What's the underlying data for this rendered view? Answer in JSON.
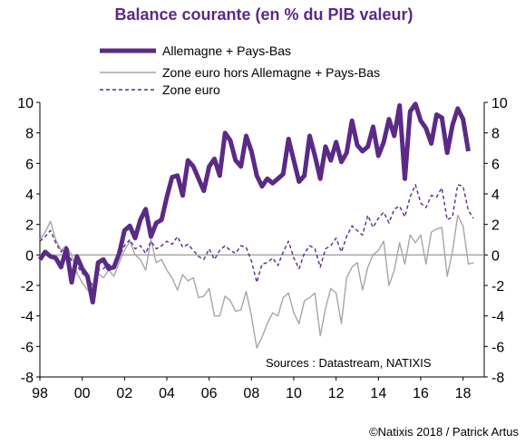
{
  "colors": {
    "primary": "#5b2a86",
    "grey": "#a6a6a6",
    "zero": "#a6a6a6"
  },
  "chart_data": {
    "type": "line",
    "title": "Balance courante (en % du PIB valeur)",
    "ylim": [
      -8,
      10
    ],
    "yticks": [
      "10",
      "8",
      "6",
      "4",
      "2",
      "0",
      "-2",
      "-4",
      "-6",
      "-8"
    ],
    "xlim": [
      1998,
      2019
    ],
    "xticks": [
      "98",
      "00",
      "02",
      "04",
      "06",
      "08",
      "10",
      "12",
      "14",
      "16",
      "18"
    ],
    "source": "Sources  : Datastream,  NATIXIS",
    "credit": "©Natixis 2018 / Patrick Artus",
    "grid": false,
    "legend": "top-left",
    "series": [
      {
        "name": "Allemagne + Pays-Bas",
        "color": "#5b2a86",
        "style": "solid-thick",
        "points": [
          [
            1998.0,
            -0.3
          ],
          [
            1998.25,
            0.2
          ],
          [
            1998.5,
            -0.1
          ],
          [
            1998.75,
            -0.2
          ],
          [
            1999.0,
            -0.8
          ],
          [
            1999.25,
            0.4
          ],
          [
            1999.5,
            -1.8
          ],
          [
            1999.75,
            -0.1
          ],
          [
            2000.0,
            -0.9
          ],
          [
            2000.25,
            -1.4
          ],
          [
            2000.5,
            -3.1
          ],
          [
            2000.75,
            -0.5
          ],
          [
            2001.0,
            -0.3
          ],
          [
            2001.25,
            -0.9
          ],
          [
            2001.5,
            -0.8
          ],
          [
            2001.75,
            0.1
          ],
          [
            2002.0,
            1.6
          ],
          [
            2002.25,
            1.9
          ],
          [
            2002.5,
            1.1
          ],
          [
            2002.75,
            2.3
          ],
          [
            2003.0,
            3.0
          ],
          [
            2003.25,
            1.2
          ],
          [
            2003.5,
            2.1
          ],
          [
            2003.75,
            2.3
          ],
          [
            2004.0,
            3.8
          ],
          [
            2004.25,
            5.1
          ],
          [
            2004.5,
            5.2
          ],
          [
            2004.75,
            3.9
          ],
          [
            2005.0,
            6.2
          ],
          [
            2005.25,
            5.8
          ],
          [
            2005.5,
            5.0
          ],
          [
            2005.75,
            4.2
          ],
          [
            2006.0,
            5.8
          ],
          [
            2006.25,
            6.3
          ],
          [
            2006.5,
            5.2
          ],
          [
            2006.75,
            8.0
          ],
          [
            2007.0,
            7.5
          ],
          [
            2007.25,
            6.2
          ],
          [
            2007.5,
            5.8
          ],
          [
            2007.75,
            7.8
          ],
          [
            2008.0,
            6.8
          ],
          [
            2008.25,
            5.2
          ],
          [
            2008.5,
            4.5
          ],
          [
            2008.75,
            5.0
          ],
          [
            2009.0,
            4.7
          ],
          [
            2009.25,
            5.0
          ],
          [
            2009.5,
            5.3
          ],
          [
            2009.75,
            7.6
          ],
          [
            2010.0,
            6.2
          ],
          [
            2010.25,
            4.8
          ],
          [
            2010.5,
            5.2
          ],
          [
            2010.75,
            7.8
          ],
          [
            2011.0,
            6.5
          ],
          [
            2011.25,
            5.0
          ],
          [
            2011.5,
            7.1
          ],
          [
            2011.75,
            6.2
          ],
          [
            2012.0,
            7.4
          ],
          [
            2012.25,
            6.1
          ],
          [
            2012.5,
            6.7
          ],
          [
            2012.75,
            8.8
          ],
          [
            2013.0,
            7.2
          ],
          [
            2013.25,
            6.8
          ],
          [
            2013.5,
            7.1
          ],
          [
            2013.75,
            8.4
          ],
          [
            2014.0,
            6.5
          ],
          [
            2014.25,
            7.4
          ],
          [
            2014.5,
            8.9
          ],
          [
            2014.75,
            7.8
          ],
          [
            2015.0,
            9.8
          ],
          [
            2015.25,
            5.0
          ],
          [
            2015.5,
            9.4
          ],
          [
            2015.75,
            9.9
          ],
          [
            2016.0,
            8.8
          ],
          [
            2016.25,
            8.3
          ],
          [
            2016.5,
            7.3
          ],
          [
            2016.75,
            9.2
          ],
          [
            2017.0,
            9.0
          ],
          [
            2017.25,
            6.7
          ],
          [
            2017.5,
            8.5
          ],
          [
            2017.75,
            9.6
          ],
          [
            2018.0,
            8.9
          ],
          [
            2018.25,
            6.8
          ]
        ]
      },
      {
        "name": "Zone euro hors Allemagne + Pays-Bas",
        "color": "#a6a6a6",
        "style": "solid-thin",
        "points": [
          [
            1998.0,
            1.0
          ],
          [
            1998.25,
            1.5
          ],
          [
            1998.5,
            2.2
          ],
          [
            1998.75,
            1.0
          ],
          [
            1999.0,
            0.3
          ],
          [
            1999.25,
            0.6
          ],
          [
            1999.5,
            0.0
          ],
          [
            1999.75,
            -1.2
          ],
          [
            2000.0,
            -1.8
          ],
          [
            2000.25,
            -2.3
          ],
          [
            2000.5,
            -2.0
          ],
          [
            2000.75,
            -1.2
          ],
          [
            2001.0,
            -1.5
          ],
          [
            2001.25,
            -1.0
          ],
          [
            2001.5,
            -1.4
          ],
          [
            2001.75,
            -0.5
          ],
          [
            2002.0,
            0.3
          ],
          [
            2002.25,
            0.9
          ],
          [
            2002.5,
            0.0
          ],
          [
            2002.75,
            -0.3
          ],
          [
            2003.0,
            -1.0
          ],
          [
            2003.25,
            1.0
          ],
          [
            2003.5,
            -0.5
          ],
          [
            2003.75,
            -0.3
          ],
          [
            2004.0,
            -1.0
          ],
          [
            2004.25,
            -1.5
          ],
          [
            2004.5,
            -2.3
          ],
          [
            2004.75,
            -1.3
          ],
          [
            2005.0,
            -1.7
          ],
          [
            2005.25,
            -1.5
          ],
          [
            2005.5,
            -2.8
          ],
          [
            2005.75,
            -2.7
          ],
          [
            2006.0,
            -2.2
          ],
          [
            2006.25,
            -4.0
          ],
          [
            2006.5,
            -4.0
          ],
          [
            2006.75,
            -2.7
          ],
          [
            2007.0,
            -3.0
          ],
          [
            2007.25,
            -3.7
          ],
          [
            2007.5,
            -3.6
          ],
          [
            2007.75,
            -2.4
          ],
          [
            2008.0,
            -4.0
          ],
          [
            2008.25,
            -6.1
          ],
          [
            2008.5,
            -5.4
          ],
          [
            2008.75,
            -4.5
          ],
          [
            2009.0,
            -3.8
          ],
          [
            2009.25,
            -4.0
          ],
          [
            2009.5,
            -2.8
          ],
          [
            2009.75,
            -2.5
          ],
          [
            2010.0,
            -3.8
          ],
          [
            2010.25,
            -4.5
          ],
          [
            2010.5,
            -3.0
          ],
          [
            2010.75,
            -2.8
          ],
          [
            2011.0,
            -2.5
          ],
          [
            2011.25,
            -5.3
          ],
          [
            2011.5,
            -3.5
          ],
          [
            2011.75,
            -2.2
          ],
          [
            2012.0,
            -2.5
          ],
          [
            2012.25,
            -4.5
          ],
          [
            2012.5,
            -1.5
          ],
          [
            2012.75,
            -0.8
          ],
          [
            2013.0,
            -0.5
          ],
          [
            2013.25,
            -2.3
          ],
          [
            2013.5,
            -0.8
          ],
          [
            2013.75,
            0.0
          ],
          [
            2014.0,
            0.3
          ],
          [
            2014.25,
            0.9
          ],
          [
            2014.5,
            -2.0
          ],
          [
            2014.75,
            -1.0
          ],
          [
            2015.0,
            0.8
          ],
          [
            2015.25,
            -0.6
          ],
          [
            2015.5,
            1.3
          ],
          [
            2015.75,
            0.8
          ],
          [
            2016.0,
            1.3
          ],
          [
            2016.25,
            -0.6
          ],
          [
            2016.5,
            1.5
          ],
          [
            2016.75,
            1.7
          ],
          [
            2017.0,
            1.8
          ],
          [
            2017.25,
            -1.4
          ],
          [
            2017.5,
            0.2
          ],
          [
            2017.75,
            2.6
          ],
          [
            2018.0,
            1.9
          ],
          [
            2018.25,
            -0.6
          ],
          [
            2018.5,
            -0.5
          ]
        ]
      },
      {
        "name": "Zone euro",
        "color": "#5b2a86",
        "style": "dashed",
        "points": [
          [
            1998.0,
            0.9
          ],
          [
            1998.25,
            1.2
          ],
          [
            1998.5,
            1.6
          ],
          [
            1998.75,
            0.8
          ],
          [
            1999.0,
            0.2
          ],
          [
            1999.25,
            0.5
          ],
          [
            1999.5,
            -0.4
          ],
          [
            1999.75,
            -0.7
          ],
          [
            2000.0,
            -1.2
          ],
          [
            2000.25,
            -1.5
          ],
          [
            2000.5,
            -2.0
          ],
          [
            2000.75,
            -1.0
          ],
          [
            2001.0,
            -0.9
          ],
          [
            2001.25,
            -0.6
          ],
          [
            2001.5,
            -0.9
          ],
          [
            2001.75,
            -0.1
          ],
          [
            2002.0,
            0.6
          ],
          [
            2002.25,
            1.0
          ],
          [
            2002.5,
            0.4
          ],
          [
            2002.75,
            0.6
          ],
          [
            2003.0,
            0.1
          ],
          [
            2003.25,
            0.9
          ],
          [
            2003.5,
            0.4
          ],
          [
            2003.75,
            0.6
          ],
          [
            2004.0,
            0.9
          ],
          [
            2004.25,
            0.7
          ],
          [
            2004.5,
            1.2
          ],
          [
            2004.75,
            0.5
          ],
          [
            2005.0,
            0.7
          ],
          [
            2005.25,
            0.3
          ],
          [
            2005.5,
            -0.1
          ],
          [
            2005.75,
            -0.3
          ],
          [
            2006.0,
            0.4
          ],
          [
            2006.25,
            -0.3
          ],
          [
            2006.5,
            0.3
          ],
          [
            2006.75,
            0.6
          ],
          [
            2007.0,
            0.3
          ],
          [
            2007.25,
            0.1
          ],
          [
            2007.5,
            0.6
          ],
          [
            2007.75,
            0.5
          ],
          [
            2008.0,
            -0.4
          ],
          [
            2008.25,
            -1.8
          ],
          [
            2008.5,
            -0.6
          ],
          [
            2008.75,
            -0.5
          ],
          [
            2009.0,
            -0.2
          ],
          [
            2009.25,
            -0.7
          ],
          [
            2009.5,
            0.2
          ],
          [
            2009.75,
            0.9
          ],
          [
            2010.0,
            -0.2
          ],
          [
            2010.25,
            -0.9
          ],
          [
            2010.5,
            0.1
          ],
          [
            2010.75,
            0.6
          ],
          [
            2011.0,
            0.4
          ],
          [
            2011.25,
            -0.8
          ],
          [
            2011.5,
            0.4
          ],
          [
            2011.75,
            0.6
          ],
          [
            2012.0,
            1.1
          ],
          [
            2012.25,
            0.2
          ],
          [
            2012.5,
            1.2
          ],
          [
            2012.75,
            1.9
          ],
          [
            2013.0,
            1.6
          ],
          [
            2013.25,
            1.3
          ],
          [
            2013.5,
            2.6
          ],
          [
            2013.75,
            1.8
          ],
          [
            2014.0,
            2.4
          ],
          [
            2014.25,
            2.8
          ],
          [
            2014.5,
            2.1
          ],
          [
            2014.75,
            3.0
          ],
          [
            2015.0,
            3.2
          ],
          [
            2015.25,
            2.5
          ],
          [
            2015.5,
            3.8
          ],
          [
            2015.75,
            4.6
          ],
          [
            2016.0,
            3.4
          ],
          [
            2016.25,
            3.1
          ],
          [
            2016.5,
            3.9
          ],
          [
            2016.75,
            3.8
          ],
          [
            2017.0,
            4.4
          ],
          [
            2017.25,
            2.3
          ],
          [
            2017.5,
            2.5
          ],
          [
            2017.75,
            4.6
          ],
          [
            2018.0,
            4.5
          ],
          [
            2018.25,
            2.9
          ],
          [
            2018.5,
            2.4
          ]
        ]
      }
    ]
  }
}
